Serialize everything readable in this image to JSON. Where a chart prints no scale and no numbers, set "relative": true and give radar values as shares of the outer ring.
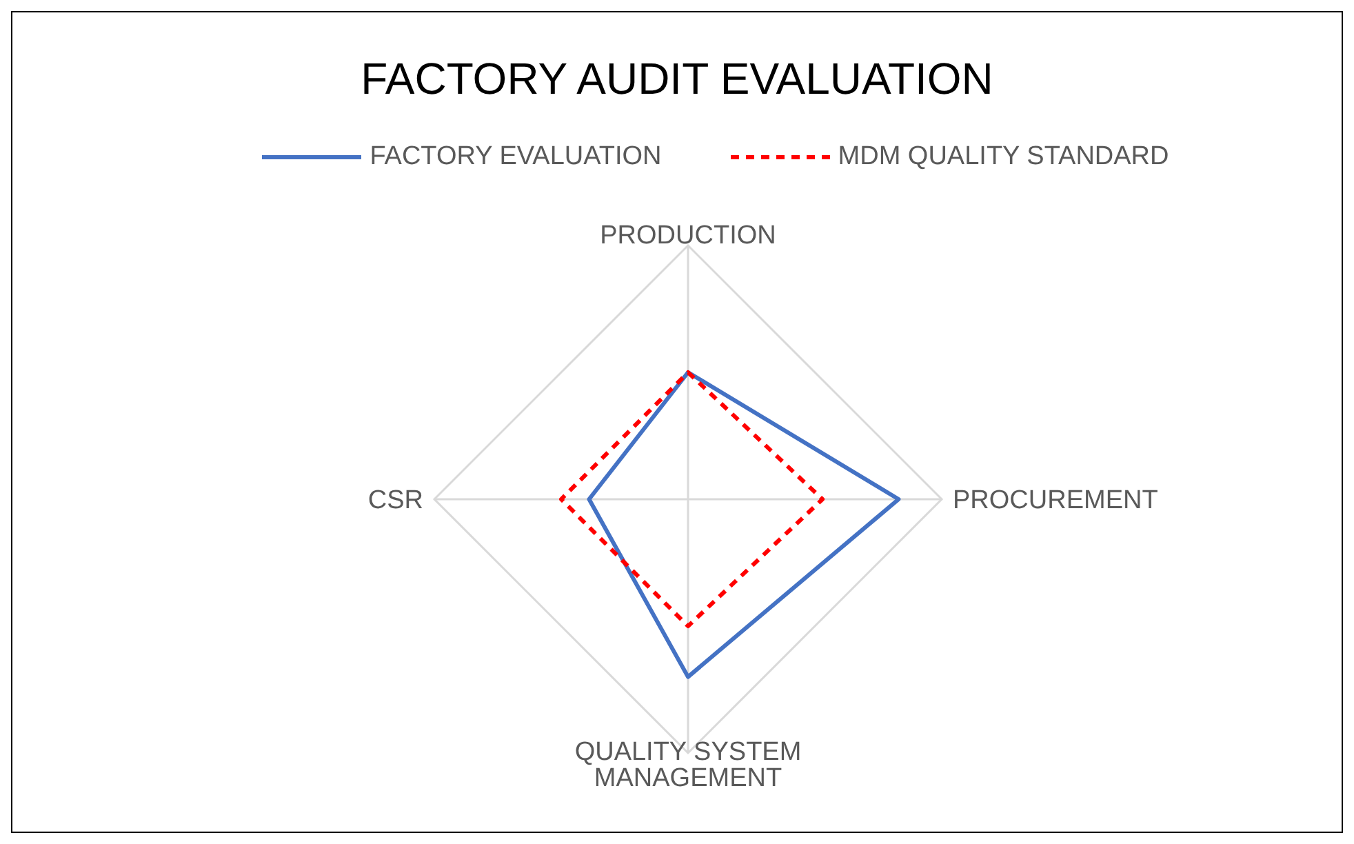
{
  "chart_data": {
    "type": "radar",
    "title": "FACTORY AUDIT EVALUATION",
    "relative": true,
    "legend": "top",
    "categories": [
      "PRODUCTION",
      "PROCUREMENT",
      "QUALITY SYSTEM MANAGEMENT",
      "CSR"
    ],
    "series": [
      {
        "name": "FACTORY EVALUATION",
        "color": "#4472c4",
        "line_style": "solid",
        "values": [
          0.5,
          0.83,
          0.7,
          0.39
        ]
      },
      {
        "name": "MDM QUALITY STANDARD",
        "color": "#ff0000",
        "line_style": "dashed",
        "values": [
          0.5,
          0.53,
          0.5,
          0.5
        ]
      }
    ]
  }
}
